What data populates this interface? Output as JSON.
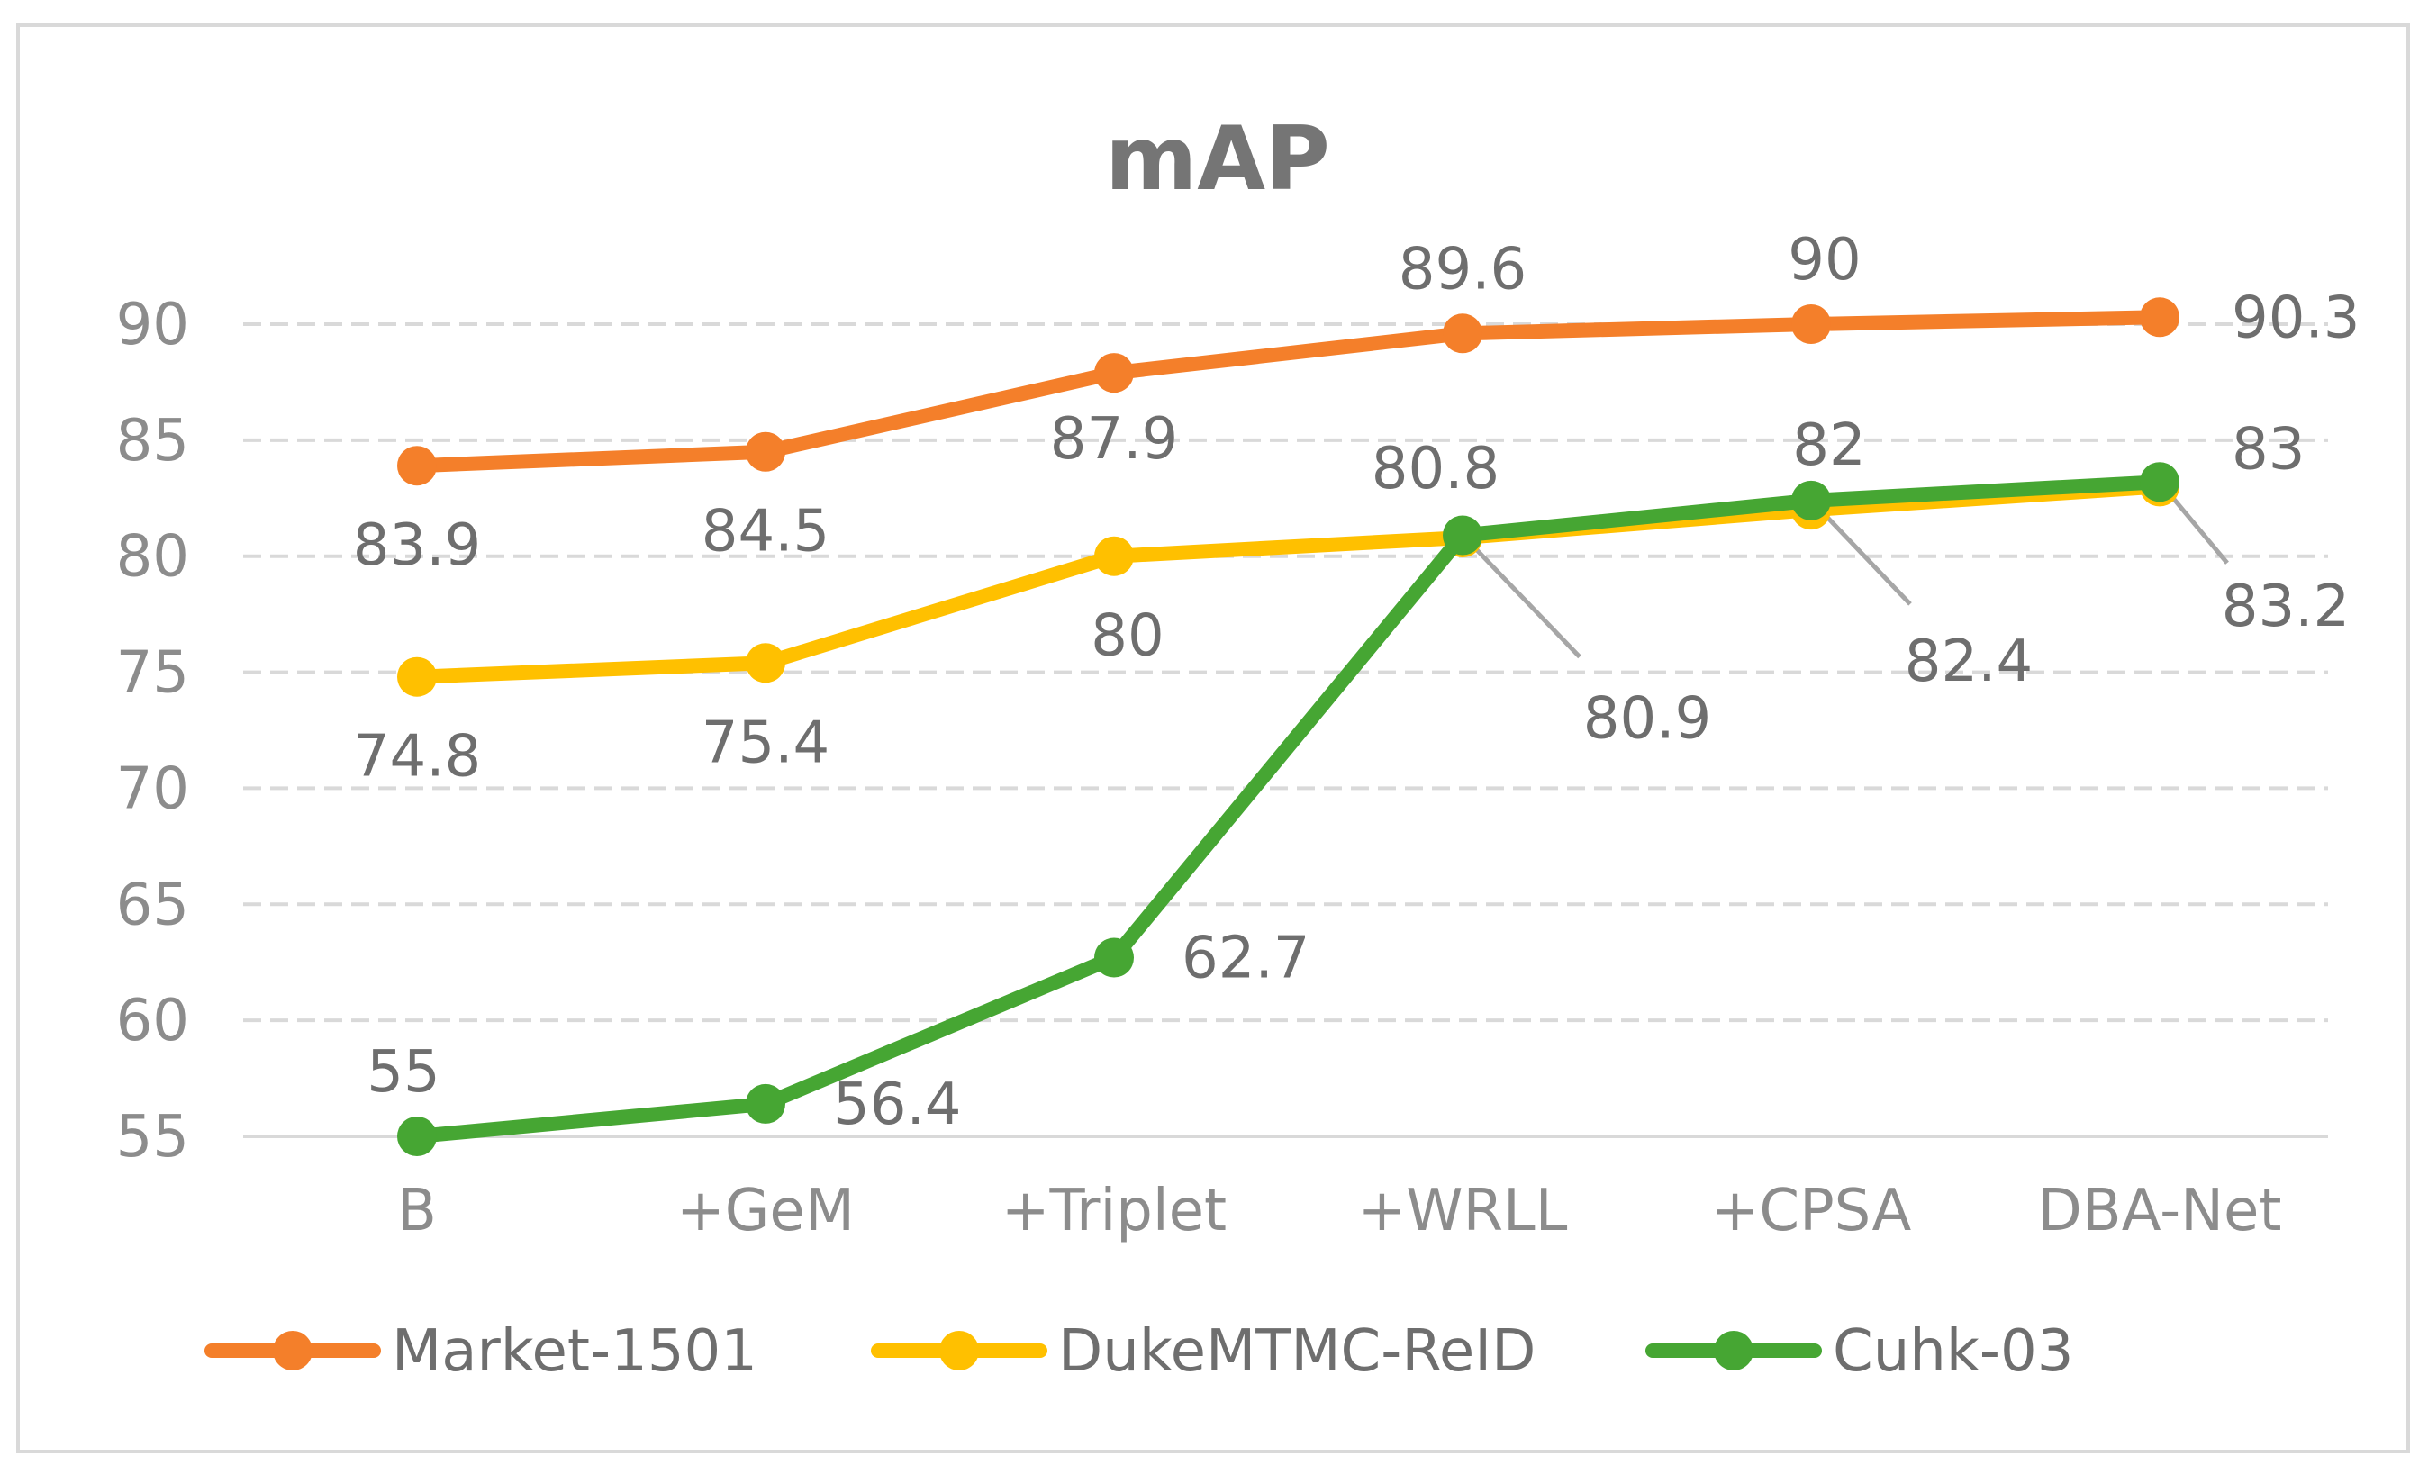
{
  "chart_data": {
    "type": "line",
    "title": "mAP",
    "categories": [
      "B",
      "+GeM",
      "+Triplet",
      "+WRLL",
      "+CPSA",
      "DBA-Net"
    ],
    "ylim": [
      55,
      90
    ],
    "yticks": [
      55,
      60,
      65,
      70,
      75,
      80,
      85,
      90
    ],
    "grid": true,
    "legend_position": "bottom",
    "series": [
      {
        "name": "Market-1501",
        "color": "#f47f2a",
        "values": [
          83.9,
          84.5,
          87.9,
          89.6,
          90,
          90.3
        ],
        "labels": [
          "83.9",
          "84.5",
          "87.9",
          "89.6",
          "90",
          "90.3"
        ]
      },
      {
        "name": "DukeMTMC-ReID",
        "color": "#ffc000",
        "values": [
          74.8,
          75.4,
          80,
          80.8,
          82,
          83
        ],
        "labels": [
          "74.8",
          "75.4",
          "80",
          "80.8",
          "82",
          "83"
        ]
      },
      {
        "name": "Cuhk-03",
        "color": "#46a633",
        "values": [
          55,
          56.4,
          62.7,
          80.9,
          82.4,
          83.2
        ],
        "labels": [
          "55",
          "56.4",
          "62.7",
          "80.9",
          "82.4",
          "83.2"
        ]
      }
    ]
  }
}
